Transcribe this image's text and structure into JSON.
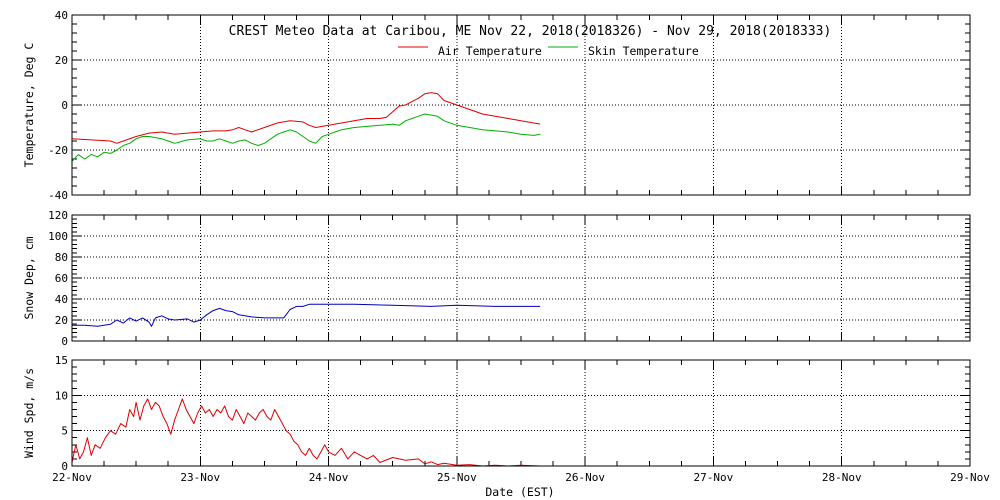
{
  "chart_data": {
    "title": "CREST Meteo Data at Caribou, ME   Nov 22, 2018(2018326) - Nov 29, 2018(2018333)",
    "type": "line",
    "xlabel": "Date (EST)",
    "x_ticks": [
      "22-Nov",
      "23-Nov",
      "24-Nov",
      "25-Nov",
      "26-Nov",
      "27-Nov",
      "28-Nov",
      "29-Nov"
    ],
    "xlim": [
      0,
      7
    ],
    "x_units": "days after 22-Nov 00:00",
    "grid": true,
    "panels": [
      {
        "name": "temperature",
        "ylabel": "Temperature, Deg C",
        "ylim": [
          -40,
          40
        ],
        "y_ticks": [
          -40,
          -20,
          0,
          20,
          40
        ],
        "legend_position": "top-center",
        "series": [
          {
            "name": "Air Temperature",
            "color": "#e00000",
            "points": [
              [
                0,
                -15
              ],
              [
                0.15,
                -15.5
              ],
              [
                0.3,
                -16
              ],
              [
                0.35,
                -17
              ],
              [
                0.4,
                -16
              ],
              [
                0.5,
                -14
              ],
              [
                0.6,
                -12.5
              ],
              [
                0.7,
                -12
              ],
              [
                0.8,
                -13
              ],
              [
                0.9,
                -12.5
              ],
              [
                1.0,
                -12
              ],
              [
                1.1,
                -11.5
              ],
              [
                1.2,
                -11.5
              ],
              [
                1.25,
                -11
              ],
              [
                1.3,
                -10
              ],
              [
                1.35,
                -11
              ],
              [
                1.4,
                -12
              ],
              [
                1.5,
                -10
              ],
              [
                1.6,
                -8
              ],
              [
                1.7,
                -7
              ],
              [
                1.8,
                -7.5
              ],
              [
                1.85,
                -9
              ],
              [
                1.9,
                -10
              ],
              [
                2.0,
                -9
              ],
              [
                2.1,
                -8
              ],
              [
                2.2,
                -7
              ],
              [
                2.3,
                -6
              ],
              [
                2.4,
                -6
              ],
              [
                2.45,
                -5.5
              ],
              [
                2.5,
                -3
              ],
              [
                2.55,
                -0.5
              ],
              [
                2.6,
                0
              ],
              [
                2.65,
                1.5
              ],
              [
                2.7,
                3
              ],
              [
                2.75,
                5
              ],
              [
                2.8,
                5.5
              ],
              [
                2.85,
                5
              ],
              [
                2.9,
                2
              ],
              [
                3.0,
                0
              ],
              [
                3.1,
                -2
              ],
              [
                3.2,
                -4
              ],
              [
                3.3,
                -5
              ],
              [
                3.4,
                -6
              ],
              [
                3.5,
                -7
              ],
              [
                3.6,
                -8
              ],
              [
                3.65,
                -8.5
              ]
            ]
          },
          {
            "name": "Skin Temperature",
            "color": "#00b000",
            "points": [
              [
                0,
                -25
              ],
              [
                0.05,
                -22
              ],
              [
                0.1,
                -24
              ],
              [
                0.15,
                -22
              ],
              [
                0.2,
                -23
              ],
              [
                0.25,
                -21
              ],
              [
                0.3,
                -21.5
              ],
              [
                0.35,
                -20
              ],
              [
                0.4,
                -18
              ],
              [
                0.45,
                -17
              ],
              [
                0.5,
                -15
              ],
              [
                0.55,
                -14
              ],
              [
                0.6,
                -14
              ],
              [
                0.7,
                -15
              ],
              [
                0.75,
                -16
              ],
              [
                0.8,
                -17
              ],
              [
                0.9,
                -15.5
              ],
              [
                1.0,
                -15
              ],
              [
                1.05,
                -16
              ],
              [
                1.1,
                -16
              ],
              [
                1.15,
                -15
              ],
              [
                1.2,
                -16
              ],
              [
                1.25,
                -17
              ],
              [
                1.3,
                -16
              ],
              [
                1.35,
                -15.5
              ],
              [
                1.4,
                -17
              ],
              [
                1.45,
                -18
              ],
              [
                1.5,
                -17
              ],
              [
                1.55,
                -15
              ],
              [
                1.6,
                -13
              ],
              [
                1.65,
                -12
              ],
              [
                1.7,
                -11
              ],
              [
                1.75,
                -12
              ],
              [
                1.8,
                -14
              ],
              [
                1.85,
                -16
              ],
              [
                1.9,
                -17
              ],
              [
                1.95,
                -14
              ],
              [
                2.0,
                -13
              ],
              [
                2.05,
                -12
              ],
              [
                2.1,
                -11
              ],
              [
                2.2,
                -10
              ],
              [
                2.3,
                -9.5
              ],
              [
                2.4,
                -9
              ],
              [
                2.5,
                -8.5
              ],
              [
                2.55,
                -9
              ],
              [
                2.6,
                -7
              ],
              [
                2.65,
                -6
              ],
              [
                2.7,
                -5
              ],
              [
                2.75,
                -4
              ],
              [
                2.8,
                -4.5
              ],
              [
                2.85,
                -5
              ],
              [
                2.9,
                -7
              ],
              [
                3.0,
                -9
              ],
              [
                3.1,
                -10
              ],
              [
                3.2,
                -11
              ],
              [
                3.3,
                -11.5
              ],
              [
                3.4,
                -12
              ],
              [
                3.5,
                -13
              ],
              [
                3.6,
                -13.5
              ],
              [
                3.65,
                -13
              ]
            ]
          }
        ]
      },
      {
        "name": "snow-depth",
        "ylabel": "Snow Dep, cm",
        "ylim": [
          0,
          120
        ],
        "y_ticks": [
          0,
          20,
          40,
          60,
          80,
          100,
          120
        ],
        "series": [
          {
            "name": "",
            "color": "#0000c0",
            "points": [
              [
                0,
                15
              ],
              [
                0.1,
                15
              ],
              [
                0.2,
                14
              ],
              [
                0.3,
                16
              ],
              [
                0.35,
                20
              ],
              [
                0.4,
                17
              ],
              [
                0.45,
                22
              ],
              [
                0.5,
                19
              ],
              [
                0.55,
                22
              ],
              [
                0.6,
                18
              ],
              [
                0.62,
                14
              ],
              [
                0.65,
                22
              ],
              [
                0.7,
                24
              ],
              [
                0.75,
                21
              ],
              [
                0.8,
                20
              ],
              [
                0.9,
                21
              ],
              [
                0.95,
                18
              ],
              [
                1.0,
                20
              ],
              [
                1.05,
                25
              ],
              [
                1.1,
                29
              ],
              [
                1.15,
                31
              ],
              [
                1.2,
                29
              ],
              [
                1.25,
                28
              ],
              [
                1.3,
                25
              ],
              [
                1.4,
                23
              ],
              [
                1.5,
                22
              ],
              [
                1.6,
                22
              ],
              [
                1.65,
                22
              ],
              [
                1.7,
                30
              ],
              [
                1.75,
                33
              ],
              [
                1.8,
                33
              ],
              [
                1.85,
                35
              ],
              [
                2.0,
                35
              ],
              [
                2.2,
                35
              ],
              [
                2.5,
                34
              ],
              [
                2.8,
                33
              ],
              [
                3.0,
                34
              ],
              [
                3.3,
                33
              ],
              [
                3.65,
                33
              ]
            ]
          }
        ]
      },
      {
        "name": "wind-speed",
        "ylabel": "Wind Spd, m/s",
        "ylim": [
          0,
          15
        ],
        "y_ticks": [
          0,
          5,
          10,
          15
        ],
        "series": [
          {
            "name": "",
            "color": "#e00000",
            "points": [
              [
                0,
                0.5
              ],
              [
                0.03,
                3
              ],
              [
                0.06,
                1
              ],
              [
                0.09,
                2
              ],
              [
                0.12,
                4
              ],
              [
                0.15,
                1.5
              ],
              [
                0.18,
                3
              ],
              [
                0.22,
                2.5
              ],
              [
                0.26,
                4
              ],
              [
                0.3,
                5
              ],
              [
                0.34,
                4.5
              ],
              [
                0.38,
                6
              ],
              [
                0.42,
                5.5
              ],
              [
                0.45,
                8
              ],
              [
                0.48,
                7
              ],
              [
                0.5,
                9
              ],
              [
                0.53,
                6.5
              ],
              [
                0.56,
                8.5
              ],
              [
                0.59,
                9.5
              ],
              [
                0.62,
                8
              ],
              [
                0.65,
                9
              ],
              [
                0.68,
                8.5
              ],
              [
                0.71,
                7
              ],
              [
                0.74,
                6
              ],
              [
                0.77,
                4.5
              ],
              [
                0.8,
                6.5
              ],
              [
                0.83,
                8
              ],
              [
                0.86,
                9.5
              ],
              [
                0.89,
                8
              ],
              [
                0.92,
                7
              ],
              [
                0.95,
                6
              ],
              [
                0.98,
                7.5
              ],
              [
                1.01,
                8.5
              ],
              [
                1.04,
                7.5
              ],
              [
                1.07,
                8
              ],
              [
                1.1,
                7
              ],
              [
                1.13,
                8
              ],
              [
                1.16,
                7.5
              ],
              [
                1.19,
                8.5
              ],
              [
                1.22,
                7
              ],
              [
                1.25,
                6.5
              ],
              [
                1.28,
                8
              ],
              [
                1.31,
                7
              ],
              [
                1.34,
                6
              ],
              [
                1.37,
                7.5
              ],
              [
                1.4,
                7
              ],
              [
                1.43,
                6.5
              ],
              [
                1.46,
                7.5
              ],
              [
                1.49,
                8
              ],
              [
                1.52,
                7
              ],
              [
                1.55,
                6.5
              ],
              [
                1.58,
                8
              ],
              [
                1.61,
                7
              ],
              [
                1.64,
                6
              ],
              [
                1.67,
                5
              ],
              [
                1.7,
                4.5
              ],
              [
                1.73,
                3.5
              ],
              [
                1.76,
                3
              ],
              [
                1.79,
                2
              ],
              [
                1.82,
                1.5
              ],
              [
                1.85,
                2.5
              ],
              [
                1.88,
                1.5
              ],
              [
                1.91,
                1
              ],
              [
                1.94,
                2
              ],
              [
                1.97,
                3
              ],
              [
                2.0,
                2
              ],
              [
                2.05,
                1.5
              ],
              [
                2.1,
                2.5
              ],
              [
                2.15,
                1
              ],
              [
                2.2,
                2
              ],
              [
                2.25,
                1.5
              ],
              [
                2.3,
                1
              ],
              [
                2.35,
                1.5
              ],
              [
                2.4,
                0.5
              ],
              [
                2.5,
                1.2
              ],
              [
                2.6,
                0.8
              ],
              [
                2.7,
                1
              ],
              [
                2.75,
                0.3
              ],
              [
                2.8,
                0.6
              ],
              [
                2.85,
                0.2
              ],
              [
                2.9,
                0.4
              ],
              [
                3.0,
                0.1
              ],
              [
                3.1,
                0.2
              ],
              [
                3.2,
                0
              ],
              [
                3.3,
                0.1
              ],
              [
                3.4,
                0
              ],
              [
                3.5,
                0.1
              ],
              [
                3.65,
                0
              ]
            ]
          }
        ]
      }
    ]
  }
}
